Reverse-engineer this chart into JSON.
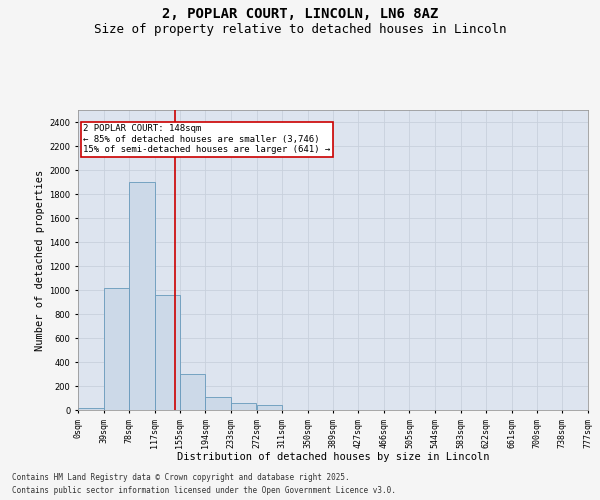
{
  "title_line1": "2, POPLAR COURT, LINCOLN, LN6 8AZ",
  "title_line2": "Size of property relative to detached houses in Lincoln",
  "xlabel": "Distribution of detached houses by size in Lincoln",
  "ylabel": "Number of detached properties",
  "bar_color": "#ccd9e8",
  "bar_edge_color": "#6699bb",
  "grid_color": "#c8d0dc",
  "bg_color": "#dde4ef",
  "annotation_box_color": "#cc0000",
  "vline_color": "#cc0000",
  "vline_x": 148,
  "annotation_text": "2 POPLAR COURT: 148sqm\n← 85% of detached houses are smaller (3,746)\n15% of semi-detached houses are larger (641) →",
  "footer_line1": "Contains HM Land Registry data © Crown copyright and database right 2025.",
  "footer_line2": "Contains public sector information licensed under the Open Government Licence v3.0.",
  "categories": [
    "0sqm",
    "39sqm",
    "78sqm",
    "117sqm",
    "155sqm",
    "194sqm",
    "233sqm",
    "272sqm",
    "311sqm",
    "350sqm",
    "389sqm",
    "427sqm",
    "466sqm",
    "505sqm",
    "544sqm",
    "583sqm",
    "622sqm",
    "661sqm",
    "700sqm",
    "738sqm",
    "777sqm"
  ],
  "bar_lefts": [
    0,
    39,
    78,
    117,
    155,
    194,
    233,
    272,
    311,
    350,
    389,
    427,
    466,
    505,
    544,
    583,
    622,
    661,
    700,
    738
  ],
  "bar_widths": [
    39,
    39,
    39,
    38,
    39,
    39,
    39,
    39,
    39,
    39,
    38,
    39,
    39,
    39,
    39,
    39,
    39,
    39,
    38,
    39
  ],
  "bar_heights": [
    20,
    1020,
    1900,
    960,
    300,
    110,
    60,
    40,
    0,
    0,
    0,
    0,
    0,
    0,
    0,
    0,
    0,
    0,
    0,
    0
  ],
  "ylim": [
    0,
    2500
  ],
  "yticks": [
    0,
    200,
    400,
    600,
    800,
    1000,
    1200,
    1400,
    1600,
    1800,
    2000,
    2200,
    2400
  ],
  "xlim": [
    0,
    777
  ],
  "title_fontsize": 10,
  "subtitle_fontsize": 9,
  "label_fontsize": 7.5,
  "tick_fontsize": 6,
  "ann_fontsize": 6.5,
  "footer_fontsize": 5.5
}
